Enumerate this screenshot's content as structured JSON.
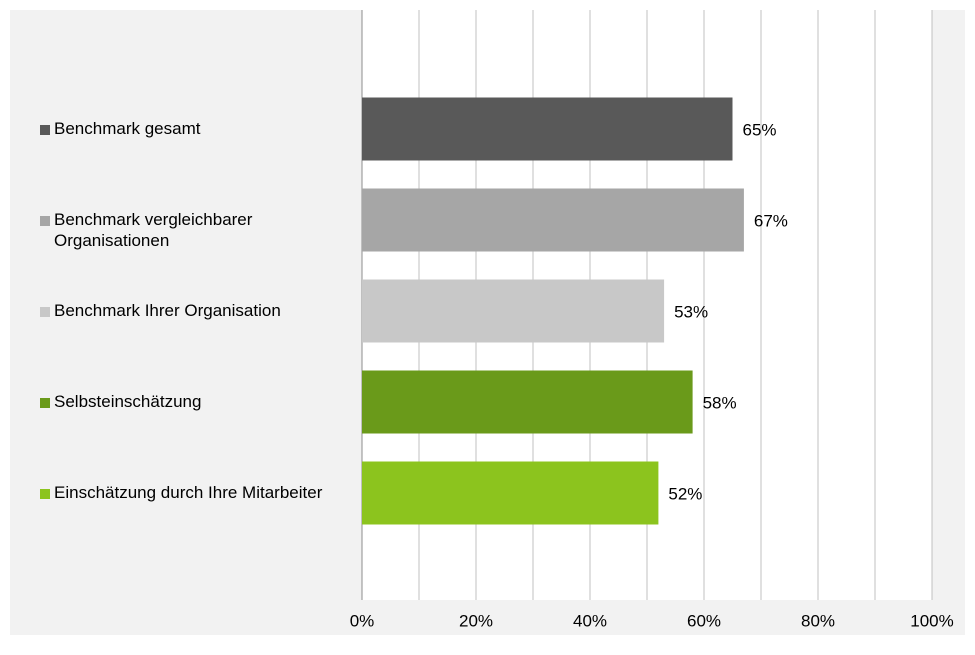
{
  "chart_data": {
    "type": "bar",
    "orientation": "horizontal",
    "categories": [
      "Benchmark gesamt",
      "Benchmark vergleichbarer Organisationen",
      "Benchmark Ihrer Organisation",
      "Selbsteinschätzung",
      "Einschätzung durch Ihre Mitarbeiter"
    ],
    "values": [
      65,
      67,
      53,
      58,
      52
    ],
    "value_labels": [
      "65%",
      "67%",
      "53%",
      "58%",
      "52%"
    ],
    "colors": [
      "#595959",
      "#a6a6a6",
      "#c8c8c8",
      "#6a9a1a",
      "#8cc41e"
    ],
    "xlim": [
      0,
      100
    ],
    "xticks": [
      {
        "value": 0,
        "label": "0%"
      },
      {
        "value": 20,
        "label": "20%"
      },
      {
        "value": 40,
        "label": "40%"
      },
      {
        "value": 60,
        "label": "60%"
      },
      {
        "value": 80,
        "label": "80%"
      },
      {
        "value": 100,
        "label": "100%"
      }
    ],
    "minor_xticks": [
      10,
      30,
      50,
      70,
      90
    ],
    "grid": true
  }
}
